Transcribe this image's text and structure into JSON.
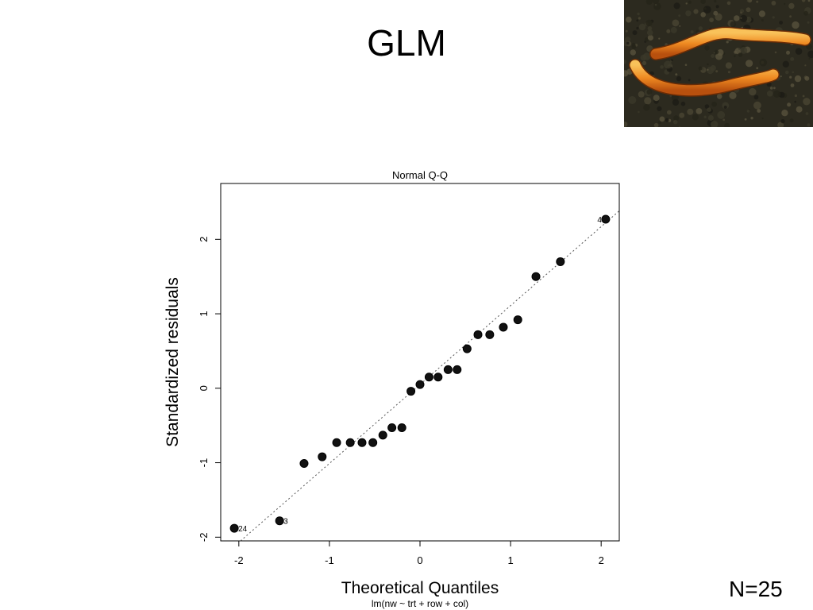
{
  "slide": {
    "title": "GLM",
    "footer_note": "N=25"
  },
  "photo": {
    "subject": "two orange wireworm larvae on dark soil",
    "colors": {
      "soil": "#2c2a1f",
      "larva": "#e8781c",
      "larva_light": "#f7b040"
    }
  },
  "chart_data": {
    "type": "scatter",
    "title": "Normal Q-Q",
    "xlabel": "Theoretical Quantiles",
    "ylabel": "Standardized residuals",
    "subtitle": "lm(nw ~ trt + row + col)",
    "xlim": [
      -2.2,
      2.2
    ],
    "ylim": [
      -2.05,
      2.75
    ],
    "xticks": [
      -2,
      -1,
      0,
      1,
      2
    ],
    "yticks": [
      -2,
      -1,
      0,
      1,
      2
    ],
    "grid": false,
    "points": [
      {
        "x": -2.05,
        "y": -1.88,
        "label": "24"
      },
      {
        "x": -1.55,
        "y": -1.78,
        "label": "3"
      },
      {
        "x": -1.28,
        "y": -1.01
      },
      {
        "x": -1.08,
        "y": -0.92
      },
      {
        "x": -0.92,
        "y": -0.73
      },
      {
        "x": -0.77,
        "y": -0.73
      },
      {
        "x": -0.64,
        "y": -0.73
      },
      {
        "x": -0.52,
        "y": -0.73
      },
      {
        "x": -0.41,
        "y": -0.63
      },
      {
        "x": -0.31,
        "y": -0.53
      },
      {
        "x": -0.2,
        "y": -0.53
      },
      {
        "x": -0.1,
        "y": -0.04
      },
      {
        "x": 0.0,
        "y": 0.05
      },
      {
        "x": 0.1,
        "y": 0.15
      },
      {
        "x": 0.2,
        "y": 0.15
      },
      {
        "x": 0.31,
        "y": 0.25
      },
      {
        "x": 0.41,
        "y": 0.25
      },
      {
        "x": 0.52,
        "y": 0.53
      },
      {
        "x": 0.64,
        "y": 0.72
      },
      {
        "x": 0.77,
        "y": 0.72
      },
      {
        "x": 0.92,
        "y": 0.82
      },
      {
        "x": 1.08,
        "y": 0.92
      },
      {
        "x": 1.28,
        "y": 1.5
      },
      {
        "x": 1.55,
        "y": 1.7
      },
      {
        "x": 2.05,
        "y": 2.27,
        "label": "4"
      }
    ],
    "reference_line": {
      "style": "dotted",
      "intercept": 0.05,
      "slope": 1.06
    }
  }
}
